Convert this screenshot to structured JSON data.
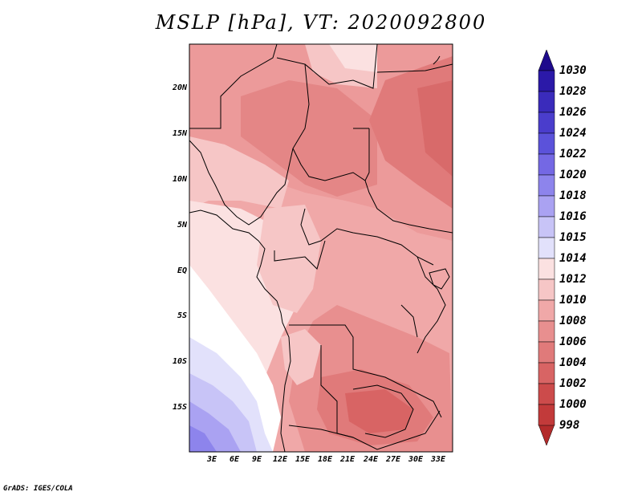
{
  "title": "MSLP [hPa], VT: 2020092800",
  "credit": "GrADS: IGES/COLA",
  "lat_labels": [
    "20N",
    "15N",
    "10N",
    "5N",
    "EQ",
    "5S",
    "10S",
    "15S"
  ],
  "lon_labels": [
    "3E",
    "6E",
    "9E",
    "12E",
    "15E",
    "18E",
    "21E",
    "24E",
    "27E",
    "30E",
    "33E"
  ],
  "colorbar": {
    "levels": [
      "1030",
      "1028",
      "1026",
      "1024",
      "1022",
      "1020",
      "1018",
      "1016",
      "1015",
      "1014",
      "1012",
      "1010",
      "1008",
      "1006",
      "1004",
      "1002",
      "1000",
      "998"
    ],
    "colors": [
      "#1e0a8c",
      "#2b19a8",
      "#3a2bbb",
      "#4a3dcc",
      "#5b52da",
      "#7468e4",
      "#8d84ec",
      "#aaa2f2",
      "#c8c4f7",
      "#e2e1fb",
      "#fbe1e1",
      "#f6c6c6",
      "#f0a8a8",
      "#e88f8f",
      "#e07a7a",
      "#d86464",
      "#cc4b4b",
      "#c23a3a",
      "#b32b2b"
    ]
  }
}
